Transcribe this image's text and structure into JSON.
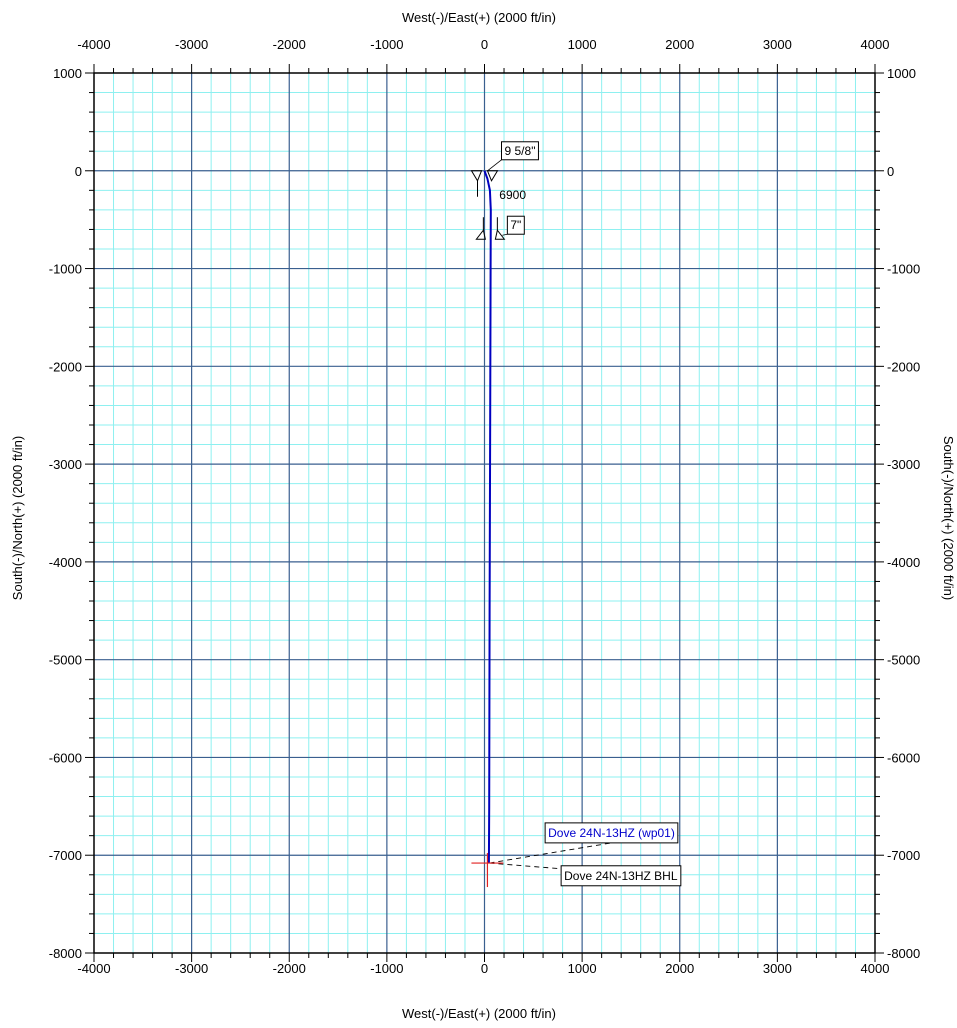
{
  "chart_data": {
    "type": "line",
    "x_axis_title": "West(-)/East(+) (2000 ft/in)",
    "y_axis_title": "South(-)/North(+) (2000 ft/in)",
    "xlim": [
      -4000,
      4000
    ],
    "ylim": [
      -8000,
      1000
    ],
    "x_ticks": [
      -4000,
      -3000,
      -2000,
      -1000,
      0,
      1000,
      2000,
      3000,
      4000
    ],
    "y_ticks": [
      1000,
      0,
      -1000,
      -2000,
      -3000,
      -4000,
      -5000,
      -6000,
      -7000,
      -8000
    ],
    "x_tick_labels": [
      "-4000",
      "-3000",
      "-2000",
      "-1000",
      "0",
      "1000",
      "2000",
      "3000",
      "4000"
    ],
    "y_tick_labels": [
      "1000",
      "0",
      "-1000",
      "-2000",
      "-3000",
      "-4000",
      "-5000",
      "-6000",
      "-7000",
      "-8000"
    ],
    "major_grid_step": 1000,
    "minor_grid_step": 200,
    "grid": true,
    "colors": {
      "minor_grid": "#8ef0f0",
      "major_grid": "#3a5f8f",
      "well_path": "#0000c0",
      "target": "#e02020",
      "plan_label": "#0000cc"
    },
    "series": [
      {
        "name": "Dove 24N-13HZ (wp01)",
        "x": [
          0,
          30,
          55,
          65,
          62,
          58,
          52,
          48,
          45
        ],
        "y": [
          0,
          -80,
          -200,
          -400,
          -1000,
          -2500,
          -4500,
          -6500,
          -7080
        ]
      }
    ],
    "annotations": {
      "casing_top": {
        "label": "9 5/8\"",
        "x": 0,
        "y": 0
      },
      "casing_bottom": {
        "label": "7\"",
        "x": 60,
        "y": -700
      },
      "md_label": {
        "label": "6900",
        "x": 80,
        "y": -290
      },
      "plan_label": {
        "label": "Dove 24N-13HZ (wp01)",
        "x": 1000,
        "y": -6700
      },
      "target_label": {
        "label": "Dove 24N-13HZ BHL",
        "x": 1000,
        "y": -7200
      },
      "target": {
        "x": 30,
        "y": -7080
      }
    }
  }
}
